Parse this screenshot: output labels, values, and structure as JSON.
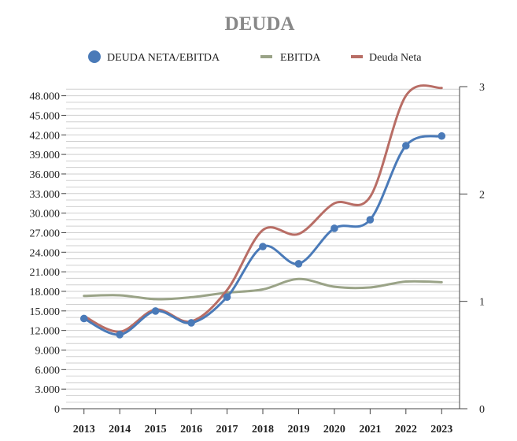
{
  "chart_data": {
    "type": "line",
    "title": "DEUDA",
    "xlabel": "",
    "ylabel": "",
    "y2label": "",
    "categories": [
      "2013",
      "2014",
      "2015",
      "2016",
      "2017",
      "2018",
      "2019",
      "2020",
      "2021",
      "2022",
      "2023"
    ],
    "ylim": [
      0,
      48000
    ],
    "y2lim": [
      0,
      3
    ],
    "yticks": [
      "0",
      "3.000",
      "6.000",
      "9.000",
      "12.000",
      "15.000",
      "18.000",
      "21.000",
      "24.000",
      "27.000",
      "30.000",
      "33.000",
      "36.000",
      "39.000",
      "42.000",
      "45.000",
      "48.000"
    ],
    "y2ticks": [
      "0",
      "1",
      "2",
      "3"
    ],
    "legend_position": "top",
    "grid": true,
    "series": [
      {
        "name": "DEUDA NETA/EBITDA",
        "axis": "right",
        "marker": "circle",
        "color": "#4a7ab8",
        "values": [
          0.84,
          0.69,
          0.91,
          0.8,
          1.04,
          1.51,
          1.35,
          1.68,
          1.76,
          2.45,
          2.54
        ]
      },
      {
        "name": "EBITDA",
        "axis": "left",
        "marker": "none",
        "color": "#9aa387",
        "values": [
          17300,
          17400,
          16800,
          17100,
          17800,
          18300,
          19900,
          18700,
          18600,
          19500,
          19400
        ]
      },
      {
        "name": "Deuda Neta",
        "axis": "left",
        "marker": "none",
        "color": "#b86d65",
        "values": [
          14200,
          11800,
          15200,
          13400,
          18200,
          27400,
          26800,
          31500,
          32500,
          48000,
          49200
        ]
      }
    ]
  }
}
